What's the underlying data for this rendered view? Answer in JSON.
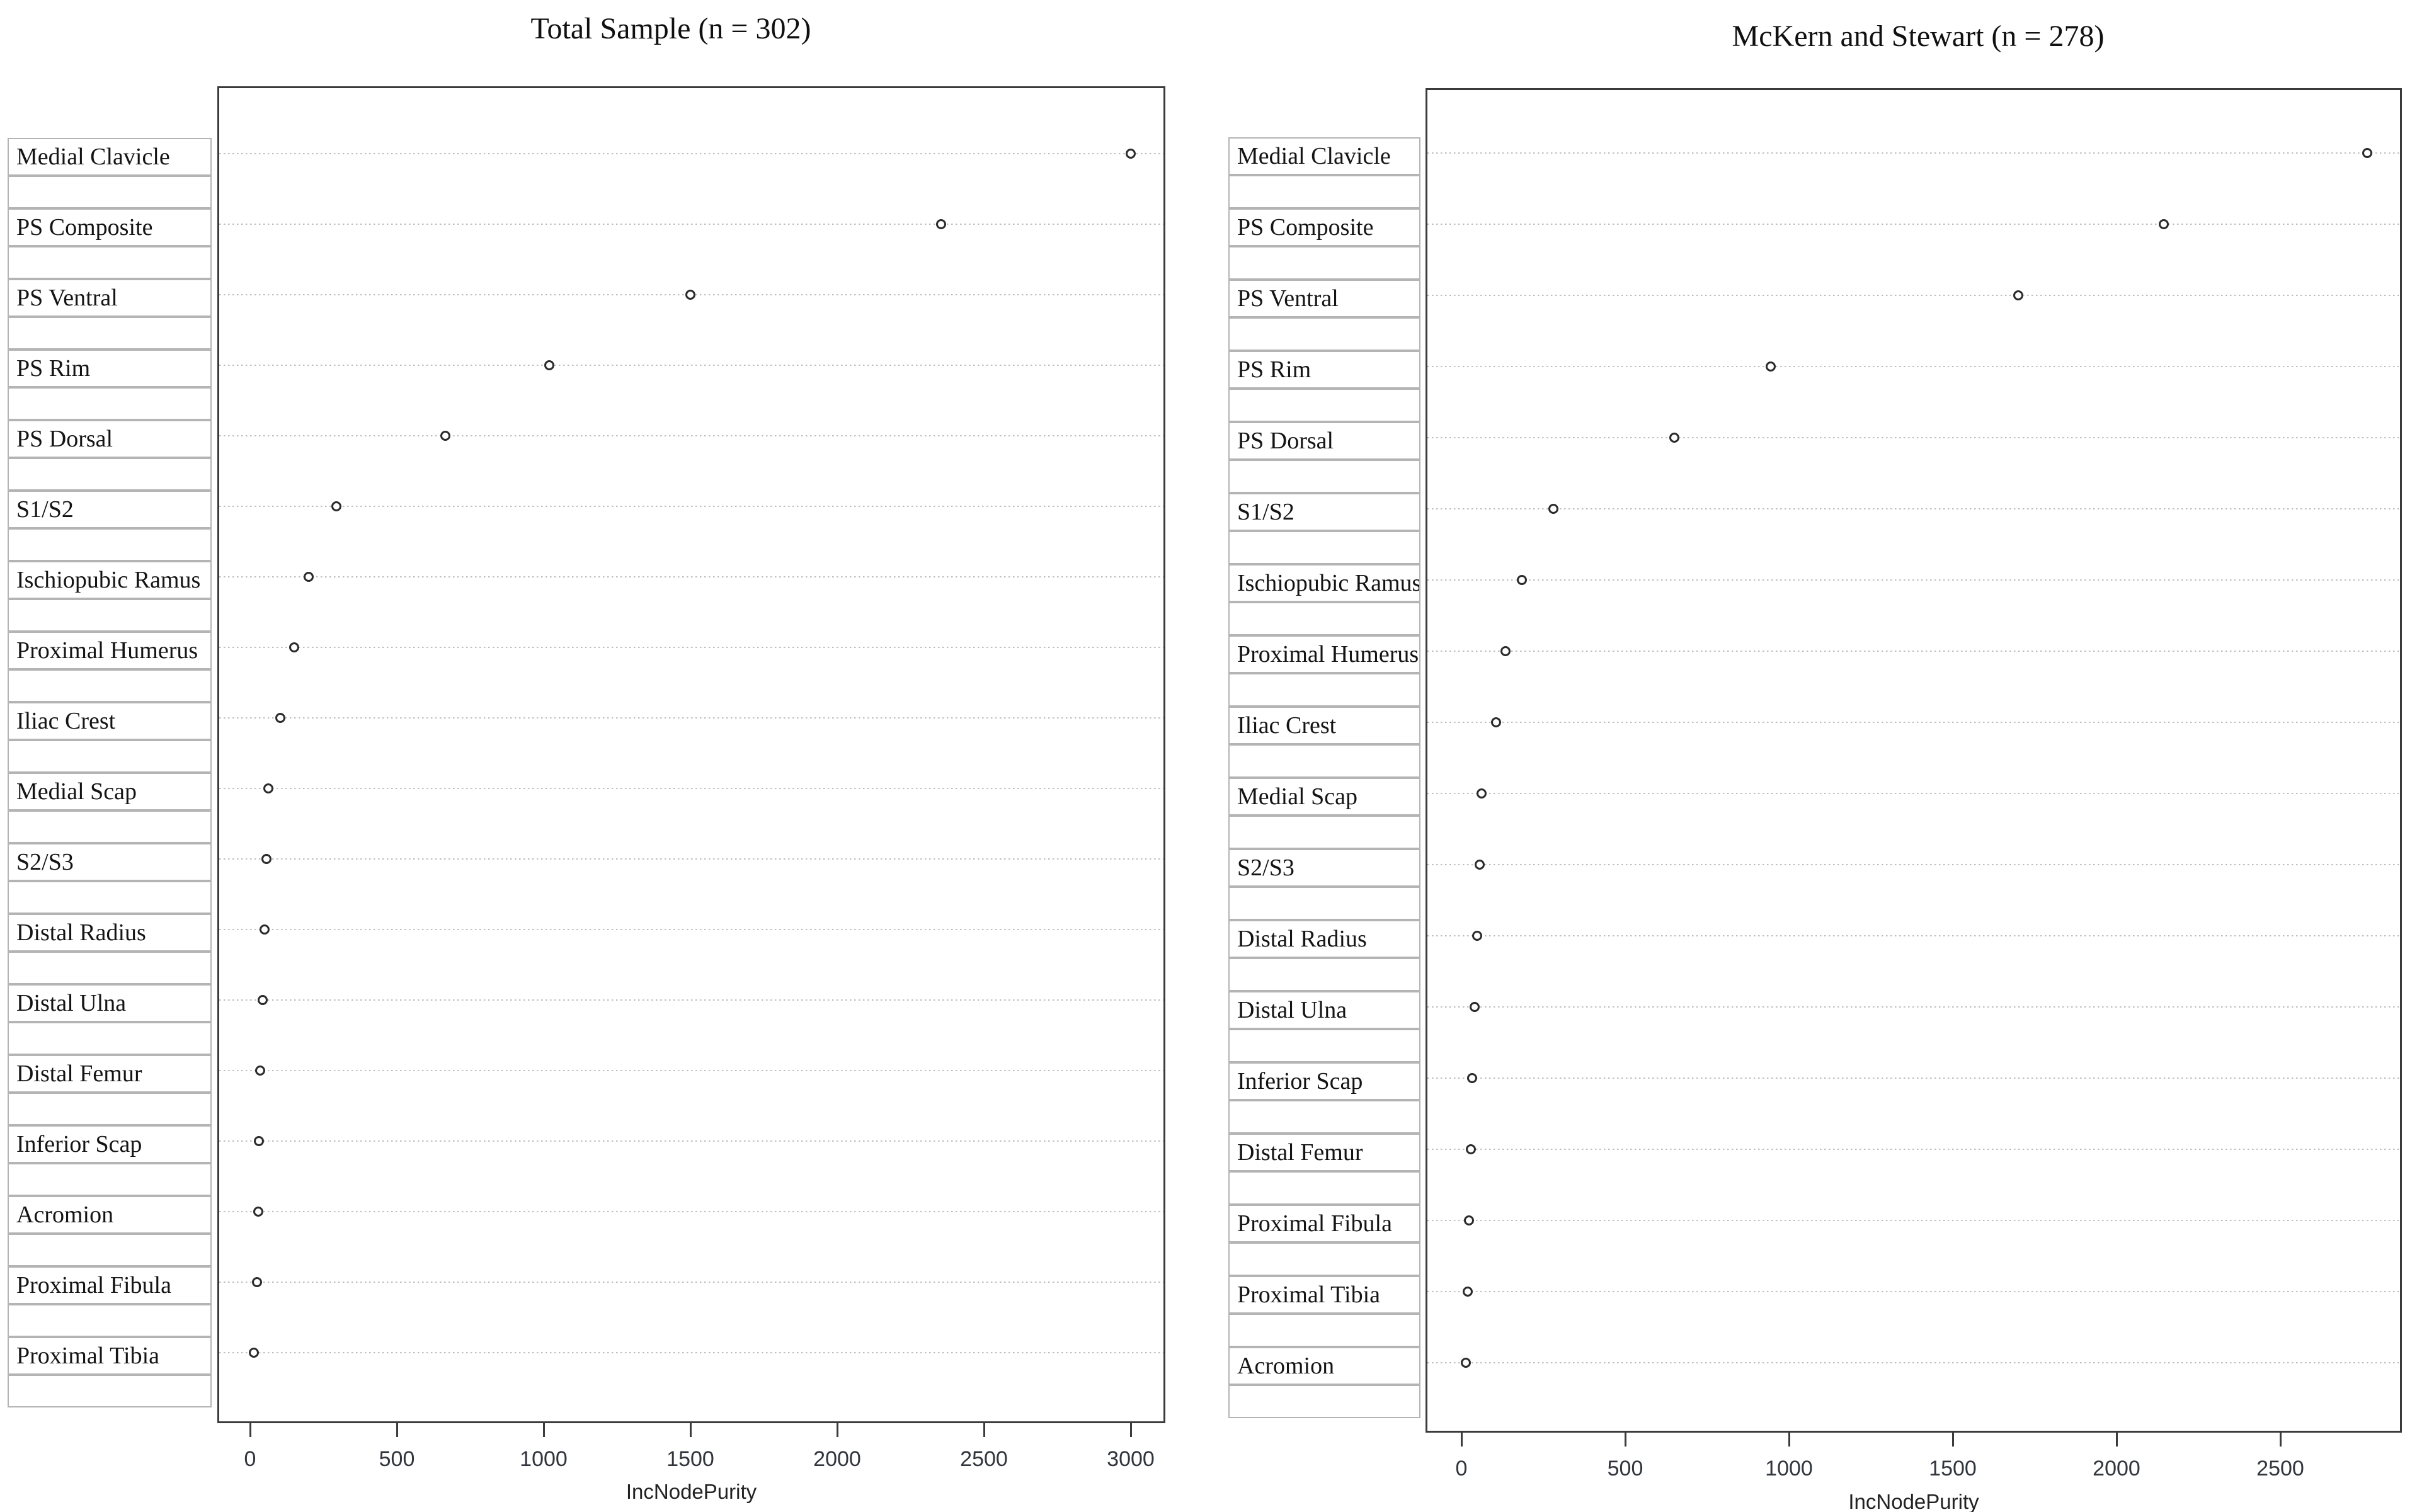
{
  "figure": {
    "type": "variable-importance-dot-plots",
    "marker": "open-circle",
    "marker_color": "#2b2b2b",
    "grid_style": "dotted-horizontal",
    "gridline_color": "#bdbdbd"
  },
  "chart_data": [
    {
      "type": "scatter",
      "title": "Total Sample (n = 302)",
      "xlabel": "IncNodePurity",
      "ylabel": "",
      "xlim": [
        -112,
        3118
      ],
      "xticks": [
        0,
        500,
        1000,
        1500,
        2000,
        2500,
        3000
      ],
      "grid": "dotted horizontal lines, one per category",
      "legend": "none",
      "categories": [
        "Medial Clavicle",
        "PS Composite",
        "PS Ventral",
        "PS Rim",
        "PS Dorsal",
        "S1/S2",
        "Ischiopubic Ramus",
        "Proximal Humerus",
        "Iliac Crest",
        "Medial Scap",
        "S2/S3",
        "Distal Radius",
        "Distal Ulna",
        "Distal Femur",
        "Inferior Scap",
        "Acromion",
        "Proximal Fibula",
        "Proximal Tibia"
      ],
      "values": [
        3000,
        2355,
        1500,
        1020,
        665,
        295,
        200,
        150,
        103,
        62,
        56,
        50,
        42,
        34,
        30,
        27,
        24,
        12
      ]
    },
    {
      "type": "scatter",
      "title": "McKern and Stewart (n = 278)",
      "xlabel": "IncNodePurity",
      "ylabel": "",
      "xlim": [
        -110,
        2872
      ],
      "xticks": [
        0,
        500,
        1000,
        1500,
        2000,
        2500
      ],
      "grid": "dotted horizontal lines, one per category",
      "legend": "none",
      "categories": [
        "Medial Clavicle",
        "PS Composite",
        "PS Ventral",
        "PS Rim",
        "PS Dorsal",
        "S1/S2",
        "Ischiopubic Ramus",
        "Proximal Humerus",
        "Iliac Crest",
        "Medial Scap",
        "S2/S3",
        "Distal Radius",
        "Distal Ulna",
        "Inferior Scap",
        "Distal Femur",
        "Proximal Fibula",
        "Proximal Tibia",
        "Acromion"
      ],
      "values": [
        2765,
        2145,
        1700,
        945,
        650,
        280,
        185,
        135,
        105,
        62,
        55,
        48,
        40,
        33,
        28,
        24,
        20,
        13
      ]
    }
  ]
}
